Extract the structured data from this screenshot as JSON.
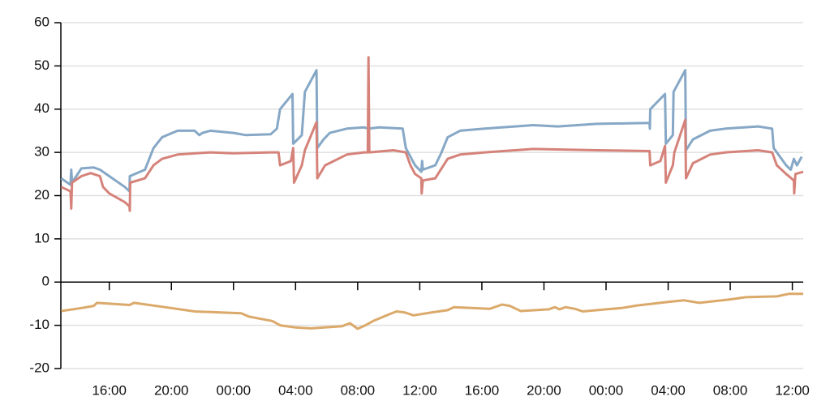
{
  "chart_data": {
    "type": "line",
    "xlim": [
      12.88,
      60.7
    ],
    "xticks": [
      {
        "value": 16,
        "label": "16:00"
      },
      {
        "value": 20,
        "label": "20:00"
      },
      {
        "value": 24,
        "label": "00:00"
      },
      {
        "value": 28,
        "label": "04:00"
      },
      {
        "value": 32,
        "label": "08:00"
      },
      {
        "value": 36,
        "label": "12:00"
      },
      {
        "value": 40,
        "label": "16:00"
      },
      {
        "value": 44,
        "label": "20:00"
      },
      {
        "value": 48,
        "label": "00:00"
      },
      {
        "value": 52,
        "label": "04:00"
      },
      {
        "value": 56,
        "label": "08:00"
      },
      {
        "value": 60,
        "label": "12:00"
      }
    ],
    "ylim": [
      -20,
      60
    ],
    "yticks": [
      -20,
      -10,
      0,
      10,
      20,
      30,
      40,
      50,
      60
    ],
    "grid": true,
    "series": [
      {
        "color": "#86a8c6",
        "x": [
          12.9,
          13.5,
          13.55,
          13.6,
          14.2,
          15.0,
          15.4,
          16.2,
          17.0,
          17.3,
          17.32,
          18.3,
          18.85,
          19.4,
          20.4,
          21.5,
          21.8,
          22.0,
          22.5,
          24.0,
          24.8,
          26.4,
          26.8,
          27.0,
          27.8,
          27.85,
          28.4,
          28.6,
          29.35,
          29.4,
          29.8,
          30.2,
          31.3,
          32.4,
          32.7,
          33.4,
          34.9,
          35.1,
          35.7,
          36.1,
          36.15,
          36.2,
          37.0,
          37.4,
          37.8,
          38.6,
          40.2,
          43.3,
          44.9,
          47.4,
          50.8,
          50.82,
          50.85,
          51.8,
          51.85,
          52.3,
          52.35,
          53.1,
          53.15,
          53.6,
          54.7,
          55.7,
          57.8,
          58.7,
          58.8,
          59.6,
          59.9,
          60.1,
          60.3,
          60.6
        ],
        "values": [
          24,
          22.5,
          26,
          23,
          26.3,
          26.5,
          26,
          24,
          22,
          21,
          24.5,
          26,
          31,
          33.5,
          35,
          35,
          34,
          34.5,
          35,
          34.5,
          34,
          34.2,
          35.5,
          40,
          43.5,
          32,
          34,
          44,
          49,
          31,
          33,
          34.5,
          35.5,
          35.8,
          35.5,
          35.8,
          35.5,
          31,
          27,
          25.5,
          28,
          26,
          27,
          30,
          33.5,
          35,
          35.5,
          36.3,
          36,
          36.6,
          36.8,
          35.5,
          40,
          43.5,
          32,
          34,
          44,
          49,
          30.5,
          33,
          35,
          35.5,
          36,
          35.5,
          31,
          27,
          26,
          28.5,
          27,
          29
        ]
      },
      {
        "color": "#d5837a",
        "x": [
          12.9,
          13.5,
          13.55,
          13.6,
          14.2,
          14.8,
          15.4,
          15.6,
          16.0,
          17.0,
          17.3,
          17.32,
          17.35,
          18.3,
          18.85,
          19.4,
          20.4,
          22.5,
          24.0,
          26.4,
          26.9,
          27.0,
          27.7,
          27.85,
          27.9,
          28.4,
          28.6,
          29.35,
          29.4,
          29.9,
          31.3,
          32.4,
          32.65,
          32.7,
          32.75,
          34.3,
          35.1,
          35.4,
          35.7,
          36.1,
          36.12,
          36.2,
          37.0,
          37.8,
          38.6,
          40.2,
          43.3,
          47.4,
          50.8,
          50.85,
          51.5,
          51.8,
          51.85,
          52.3,
          52.4,
          53.1,
          53.15,
          53.6,
          54.7,
          55.7,
          57.8,
          58.7,
          59.0,
          59.6,
          60.1,
          60.12,
          60.2,
          60.7
        ],
        "values": [
          22,
          21,
          17,
          23,
          24.5,
          25.2,
          24.5,
          22,
          20.5,
          18.5,
          17.5,
          16.5,
          23,
          24,
          27,
          28.5,
          29.5,
          30,
          29.8,
          30,
          30,
          27,
          28,
          31,
          23,
          27,
          30.5,
          37,
          24,
          27,
          29.5,
          30,
          30,
          52,
          30,
          30.5,
          30,
          27,
          25,
          24,
          20.5,
          23.5,
          24,
          28.5,
          29.5,
          30,
          30.8,
          30.5,
          30.3,
          27,
          28,
          31.5,
          23,
          27,
          30,
          37.5,
          24,
          27.5,
          29.5,
          30,
          30.5,
          30,
          27,
          25,
          23.5,
          20.5,
          25,
          25.5
        ]
      },
      {
        "color": "#dba96a",
        "x": [
          12.9,
          14.2,
          15.0,
          15.2,
          17.3,
          17.6,
          20.0,
          21.5,
          24.5,
          25.0,
          26.5,
          27.0,
          28.0,
          29.0,
          31.0,
          31.5,
          32.0,
          32.5,
          33.0,
          34.0,
          34.5,
          35.0,
          35.6,
          36.8,
          37.8,
          38.2,
          40.5,
          41.3,
          41.8,
          42.5,
          44.3,
          44.7,
          45.0,
          45.4,
          46.0,
          46.5,
          48.0,
          49.0,
          50.0,
          52.0,
          53.0,
          54.0,
          56.0,
          57.0,
          59.0,
          59.8,
          60.7
        ],
        "values": [
          -6.7,
          -6,
          -5.5,
          -4.8,
          -5.3,
          -4.8,
          -6,
          -6.8,
          -7.2,
          -8,
          -9,
          -10,
          -10.5,
          -10.7,
          -10.2,
          -9.5,
          -10.8,
          -10,
          -9,
          -7.5,
          -6.8,
          -7,
          -7.7,
          -7,
          -6.5,
          -5.8,
          -6.2,
          -5.2,
          -5.5,
          -6.7,
          -6.3,
          -5.8,
          -6.3,
          -5.8,
          -6.2,
          -6.8,
          -6.3,
          -6,
          -5.4,
          -4.6,
          -4.2,
          -4.8,
          -4,
          -3.5,
          -3.3,
          -2.7,
          -2.7
        ]
      }
    ]
  }
}
